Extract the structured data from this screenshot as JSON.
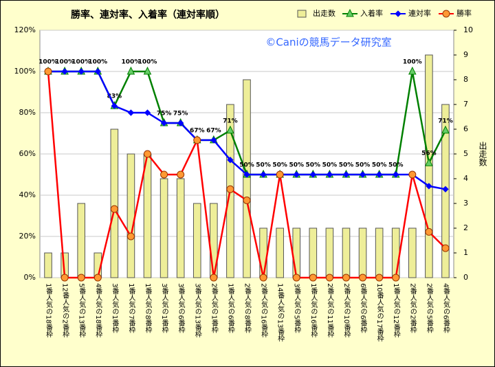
{
  "chart_data": {
    "type": "bar_line",
    "title": "勝率、連対率、入着率（連対率順）",
    "annotation": "©Caniの競馬データ研究室",
    "y2_label": "出走数",
    "categories": [
      "1番人気の18番枠",
      "12番人気の2番枠",
      "5番人気の13番枠",
      "4番人気の18番枠",
      "3番人気の1番枠",
      "1番人気の7番枠",
      "1番人気の8番枠",
      "3番人気の1番枠",
      "3番人気の6番枠",
      "3番人気の13番枠",
      "2番人気の1番枠",
      "1番人気の6番枠",
      "2番人気の8番枠",
      "2番人気の16番枠",
      "14番人気の13番枠",
      "3番人気の5番枠",
      "1番人気の16番枠",
      "2番人気の11番枠",
      "2番人気の10番枠",
      "6番人気の6番枠",
      "10番人気の17番枠",
      "1番人気の12番枠",
      "2番人気の2番枠",
      "2番人気の5番枠",
      "4番人気の6番枠"
    ],
    "series": [
      {
        "name": "出走数",
        "kind": "bar",
        "axis": "y2",
        "color": "#eeee99",
        "values": [
          1,
          1,
          3,
          1,
          6,
          5,
          5,
          4,
          4,
          3,
          3,
          7,
          8,
          2,
          2,
          2,
          2,
          2,
          2,
          2,
          2,
          2,
          2,
          9,
          7
        ]
      },
      {
        "name": "入着率",
        "kind": "line",
        "marker": "triangle",
        "color": "#008000",
        "values": [
          100,
          100,
          100,
          100,
          83.3,
          100,
          100,
          75,
          75,
          66.7,
          66.7,
          71.4,
          50,
          50,
          50,
          50,
          50,
          50,
          50,
          50,
          50,
          50,
          100,
          55.6,
          71.4
        ],
        "value_labels": [
          "100%",
          "100%",
          "100%",
          "100%",
          "83%",
          "100%",
          "100%",
          "75%",
          "75%",
          "67%",
          "67%",
          "71%",
          "50%",
          "50%",
          "50%",
          "50%",
          "50%",
          "50%",
          "50%",
          "50%",
          "50%",
          "50%",
          "100%",
          "56%",
          "71%"
        ]
      },
      {
        "name": "連対率",
        "kind": "line",
        "marker": "diamond",
        "color": "#0000ff",
        "values": [
          100,
          100,
          100,
          100,
          83.3,
          80,
          80,
          75,
          75,
          66.7,
          66.7,
          57.1,
          50,
          50,
          50,
          50,
          50,
          50,
          50,
          50,
          50,
          50,
          50,
          44.4,
          42.9
        ]
      },
      {
        "name": "勝率",
        "kind": "line",
        "marker": "circle",
        "color": "#ff0000",
        "values": [
          100,
          0,
          0,
          0,
          33.3,
          20,
          60,
          50,
          50,
          66.7,
          0,
          42.9,
          37.5,
          0,
          50,
          0,
          0,
          0,
          0,
          0,
          0,
          0,
          50,
          22.2,
          14.3
        ]
      }
    ],
    "ylim": [
      0,
      120
    ],
    "yticks": [
      {
        "value": 0,
        "label": "0%"
      },
      {
        "value": 20,
        "label": "20%"
      },
      {
        "value": 40,
        "label": "40%"
      },
      {
        "value": 60,
        "label": "60%"
      },
      {
        "value": 80,
        "label": "80%"
      },
      {
        "value": 100,
        "label": "100%"
      },
      {
        "value": 120,
        "label": "120%"
      }
    ],
    "y2lim": [
      0,
      10
    ],
    "y2ticks": [
      0,
      1,
      2,
      3,
      4,
      5,
      6,
      7,
      8,
      9,
      10
    ],
    "grid": true
  }
}
